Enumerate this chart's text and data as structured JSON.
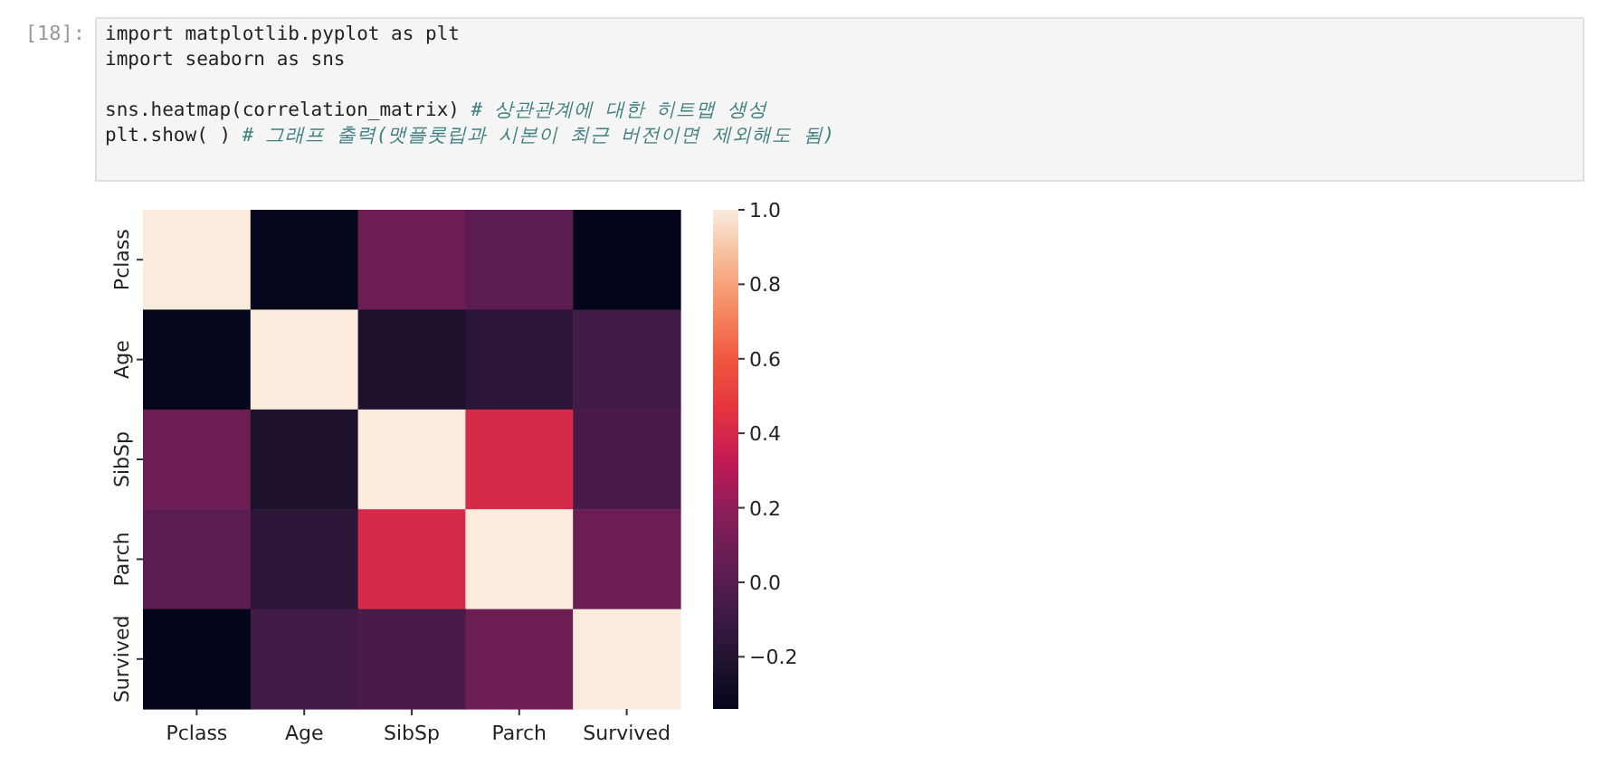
{
  "chart_data": {
    "type": "heatmap",
    "categories": [
      "Pclass",
      "Age",
      "SibSp",
      "Parch",
      "Survived"
    ],
    "y_categories": [
      "Pclass",
      "Age",
      "SibSp",
      "Parch",
      "Survived"
    ],
    "cells": [
      [
        1,
        -0.33,
        0.08,
        0.02,
        -0.34
      ],
      [
        -0.33,
        1,
        -0.23,
        -0.17,
        -0.07
      ],
      [
        0.08,
        -0.23,
        1,
        0.41,
        -0.04
      ],
      [
        0.02,
        -0.17,
        0.41,
        1,
        0.08
      ],
      [
        -0.34,
        -0.07,
        -0.04,
        0.08,
        1
      ]
    ],
    "clim": [
      -0.34,
      1
    ],
    "cticks": [
      {
        "value": -0.2,
        "label": "−0.2"
      },
      {
        "value": 0,
        "label": "0.0"
      },
      0.2,
      0.4,
      0.6,
      0.8,
      {
        "value": 1,
        "label": "1.0"
      }
    ],
    "annotations": [
      "[18]:",
      "import matplotlib.pyplot as plt",
      "import seaborn as sns",
      "sns.heatmap(correlation_matrix) # 상관관계에 대한 히트맵 생성",
      "plt.show( ) # 그래프 출력(맷플롯립과 시본이 최근 버전이면 제외해도 됨)"
    ]
  }
}
